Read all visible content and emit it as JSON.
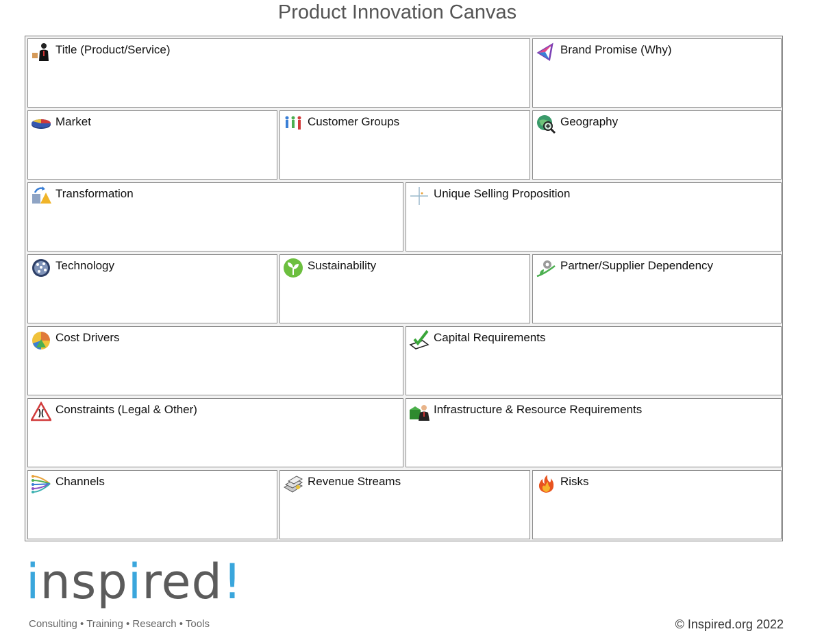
{
  "page": {
    "title": "Product Innovation Canvas"
  },
  "canvas": {
    "cells": [
      {
        "id": "title",
        "label": "Title (Product/Service)",
        "icon": "businessman-icon"
      },
      {
        "id": "brand-promise",
        "label": "Brand Promise (Why)",
        "icon": "prism-icon"
      },
      {
        "id": "market",
        "label": "Market",
        "icon": "pie-chart-icon"
      },
      {
        "id": "customer-groups",
        "label": "Customer Groups",
        "icon": "people-icon"
      },
      {
        "id": "geography",
        "label": "Geography",
        "icon": "globe-magnifier-icon"
      },
      {
        "id": "transformation",
        "label": "Transformation",
        "icon": "shapes-arrow-icon"
      },
      {
        "id": "usp",
        "label": "Unique Selling Proposition",
        "icon": "crosshair-icon"
      },
      {
        "id": "technology",
        "label": "Technology",
        "icon": "network-globe-icon"
      },
      {
        "id": "sustainability",
        "label": "Sustainability",
        "icon": "leaf-icon"
      },
      {
        "id": "partner",
        "label": "Partner/Supplier Dependency",
        "icon": "gear-plant-icon"
      },
      {
        "id": "cost-drivers",
        "label": "Cost Drivers",
        "icon": "pie-rings-icon"
      },
      {
        "id": "capital",
        "label": "Capital Requirements",
        "icon": "checkmark-icon"
      },
      {
        "id": "constraints",
        "label": "Constraints (Legal & Other)",
        "icon": "warning-sign-icon"
      },
      {
        "id": "infrastructure",
        "label": "Infrastructure & Resource Requirements",
        "icon": "person-box-icon"
      },
      {
        "id": "channels",
        "label": "Channels",
        "icon": "channels-lines-icon"
      },
      {
        "id": "revenue",
        "label": "Revenue Streams",
        "icon": "money-stack-icon"
      },
      {
        "id": "risks",
        "label": "Risks",
        "icon": "flame-icon"
      }
    ]
  },
  "footer": {
    "logo_word": "inspired!",
    "tagline": "Consulting • Training • Research • Tools",
    "copyright": "© Inspired.org 2022"
  },
  "colors": {
    "logo_blue": "#3aa6dc",
    "logo_gray": "#5b5b5b"
  }
}
